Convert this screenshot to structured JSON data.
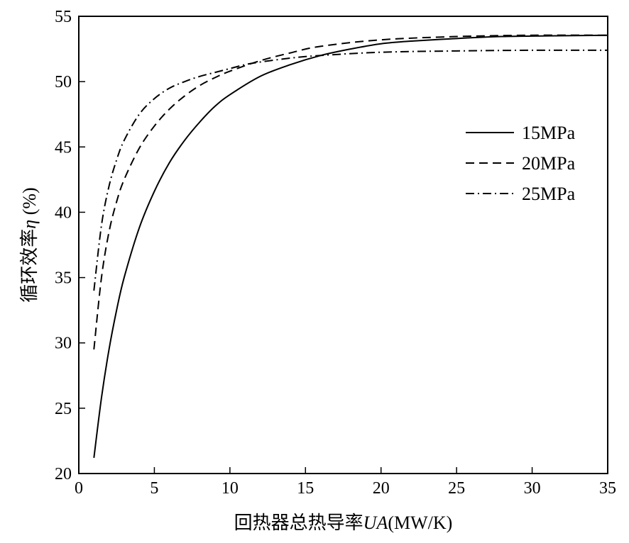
{
  "chart_data": {
    "type": "line",
    "xlabel_prefix": "回热器总热导率",
    "xlabel_var": "UA",
    "xlabel_unit": "(MW/K)",
    "ylabel_prefix": "循环效率",
    "ylabel_var": "η",
    "ylabel_unit": " (%)",
    "xlim": [
      0,
      35
    ],
    "ylim": [
      20,
      55
    ],
    "xticks": [
      0,
      5,
      10,
      15,
      20,
      25,
      30,
      35
    ],
    "yticks": [
      20,
      25,
      30,
      35,
      40,
      45,
      50,
      55
    ],
    "grid": false,
    "legend_position": "right",
    "series": [
      {
        "name": "15MPa",
        "style": "solid",
        "x": [
          1,
          1.5,
          2,
          2.5,
          3,
          4,
          5,
          6,
          7,
          8,
          9,
          10,
          12,
          14,
          16,
          18,
          20,
          22,
          25,
          28,
          31,
          35
        ],
        "y": [
          21.2,
          25.8,
          29.5,
          32.5,
          35.0,
          38.8,
          41.6,
          43.8,
          45.5,
          46.9,
          48.1,
          49.0,
          50.4,
          51.3,
          52.0,
          52.5,
          52.9,
          53.1,
          53.3,
          53.45,
          53.5,
          53.55
        ]
      },
      {
        "name": "20MPa",
        "style": "dashed",
        "x": [
          1,
          1.5,
          2,
          2.5,
          3,
          4,
          5,
          6,
          7,
          8,
          9,
          10,
          12,
          14,
          16,
          20,
          25,
          30,
          35
        ],
        "y": [
          29.5,
          35.0,
          38.5,
          40.8,
          42.5,
          44.9,
          46.6,
          47.9,
          48.9,
          49.7,
          50.3,
          50.8,
          51.6,
          52.2,
          52.7,
          53.2,
          53.45,
          53.55,
          53.55
        ]
      },
      {
        "name": "25MPa",
        "style": "dashdot",
        "x": [
          1,
          1.5,
          2,
          2.5,
          3,
          4,
          5,
          6,
          7,
          8,
          9,
          10,
          11,
          12,
          14,
          16,
          20,
          25,
          30,
          35
        ],
        "y": [
          34.0,
          39.0,
          42.0,
          44.0,
          45.5,
          47.5,
          48.7,
          49.5,
          50.0,
          50.4,
          50.7,
          51.0,
          51.3,
          51.5,
          51.8,
          52.0,
          52.25,
          52.35,
          52.4,
          52.4
        ]
      }
    ]
  }
}
